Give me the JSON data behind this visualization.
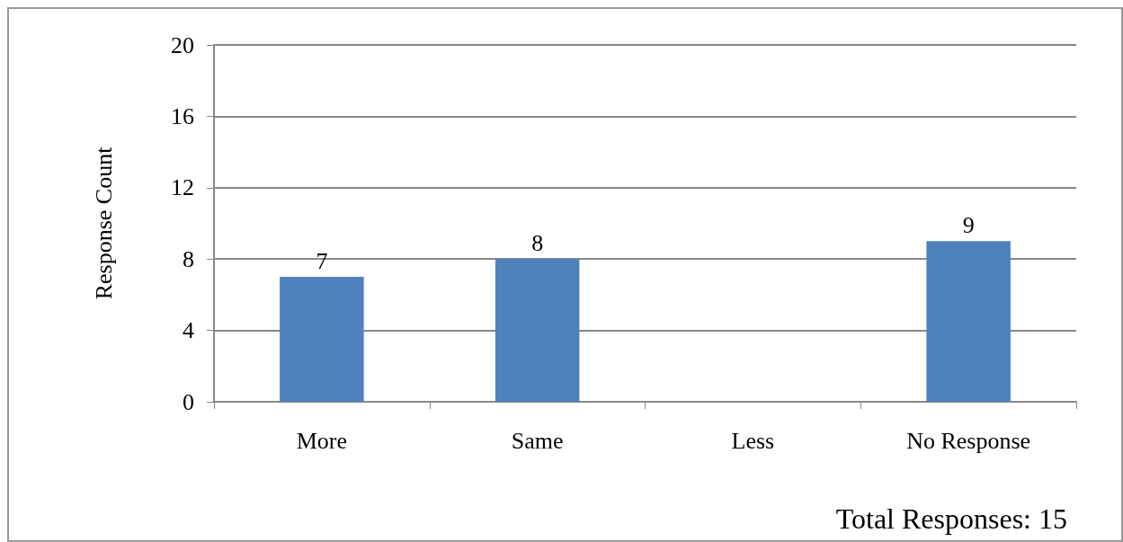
{
  "chart_data": {
    "type": "bar",
    "ylabel": "Response Count",
    "categories": [
      "More",
      "Same",
      "Less",
      "No Response"
    ],
    "values": [
      7,
      8,
      0,
      9
    ],
    "value_labels": [
      "7",
      "8",
      null,
      "9"
    ],
    "color": "#4f81bd",
    "ylim": [
      0,
      20
    ],
    "yticks": [
      0,
      4,
      8,
      12,
      16,
      20
    ],
    "grid": "y",
    "annotations": [
      "Total Responses: 15"
    ]
  }
}
